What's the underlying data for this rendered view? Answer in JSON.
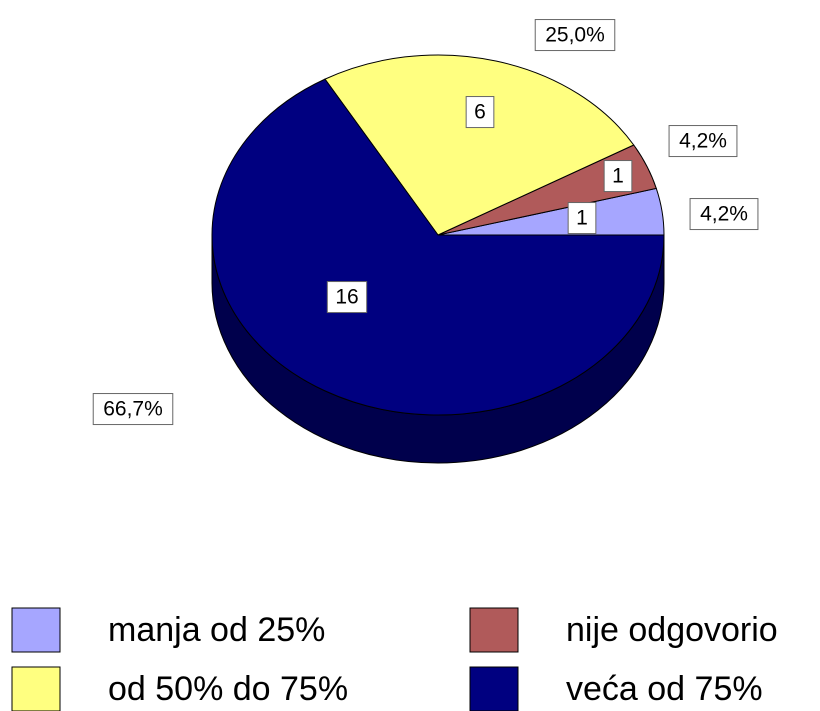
{
  "chart_data": {
    "type": "pie3d",
    "categories": [
      "manja od 25%",
      "nije odgovorio",
      "od 50% do 75%",
      "veća od 75%"
    ],
    "values": [
      1,
      1,
      6,
      16
    ],
    "percents": [
      4.2,
      4.2,
      25.0,
      66.7
    ],
    "percent_labels": [
      "4,2%",
      "4,2%",
      "25,0%",
      "66,7%"
    ],
    "colors": [
      "#a6a6ff",
      "#b05a5a",
      "#ffff80",
      "#000080"
    ],
    "legend": "bottom"
  }
}
